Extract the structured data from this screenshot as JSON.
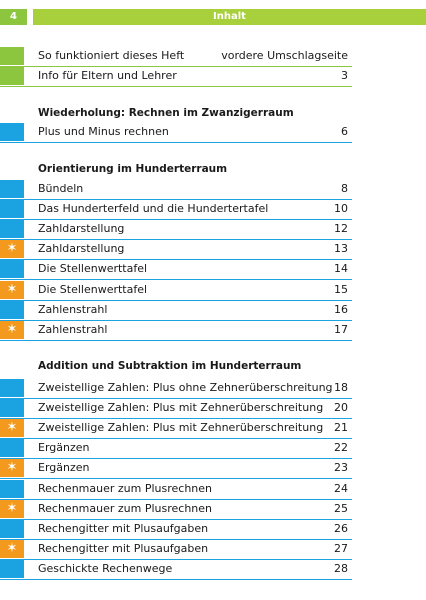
{
  "header": {
    "page_number": "4",
    "title": "Inhalt"
  },
  "intro": [
    {
      "label": "So funktioniert dieses Heft",
      "page": "vordere Umschlagseite",
      "marker": "green"
    },
    {
      "label": "Info für Eltern und Lehrer",
      "page": "3",
      "marker": "green"
    }
  ],
  "sections": [
    {
      "title": "Wiederholung: Rechnen im Zwanzigerraum",
      "items": [
        {
          "label": "Plus und Minus rechnen",
          "page": "6",
          "marker": "blue"
        }
      ]
    },
    {
      "title": "Orientierung im Hunderterraum",
      "items": [
        {
          "label": "Bündeln",
          "page": "8",
          "marker": "blue"
        },
        {
          "label": "Das Hunderterfeld und die Hundertertafel",
          "page": "10",
          "marker": "blue"
        },
        {
          "label": "Zahldarstellung",
          "page": "12",
          "marker": "blue"
        },
        {
          "label": "Zahldarstellung",
          "page": "13",
          "marker": "orange"
        },
        {
          "label": "Die Stellenwerttafel",
          "page": "14",
          "marker": "blue"
        },
        {
          "label": "Die Stellenwerttafel",
          "page": "15",
          "marker": "orange"
        },
        {
          "label": "Zahlenstrahl",
          "page": "16",
          "marker": "blue"
        },
        {
          "label": "Zahlenstrahl",
          "page": "17",
          "marker": "orange"
        }
      ]
    },
    {
      "title": "Addition und Subtraktion im Hunderterraum",
      "items": [
        {
          "label": "Zweistellige Zahlen: Plus ohne Zehnerüberschreitung",
          "page": "18",
          "marker": "blue"
        },
        {
          "label": "Zweistellige Zahlen: Plus mit Zehnerüberschreitung",
          "page": "20",
          "marker": "blue"
        },
        {
          "label": "Zweistellige Zahlen: Plus mit Zehnerüberschreitung",
          "page": "21",
          "marker": "orange"
        },
        {
          "label": "Ergänzen",
          "page": "22",
          "marker": "blue"
        },
        {
          "label": "Ergänzen",
          "page": "23",
          "marker": "orange"
        },
        {
          "label": "Rechenmauer zum Plusrechnen",
          "page": "24",
          "marker": "blue"
        },
        {
          "label": "Rechenmauer zum Plusrechnen",
          "page": "25",
          "marker": "orange"
        },
        {
          "label": "Rechengitter mit Plusaufgaben",
          "page": "26",
          "marker": "blue"
        },
        {
          "label": "Rechengitter mit Plusaufgaben",
          "page": "27",
          "marker": "orange"
        },
        {
          "label": "Geschickte Rechenwege",
          "page": "28",
          "marker": "blue"
        }
      ]
    }
  ],
  "colors": {
    "blue": "#1aa3e0",
    "green": "#8cc63f",
    "orange": "#f39a1e"
  },
  "star_glyph": "✶"
}
